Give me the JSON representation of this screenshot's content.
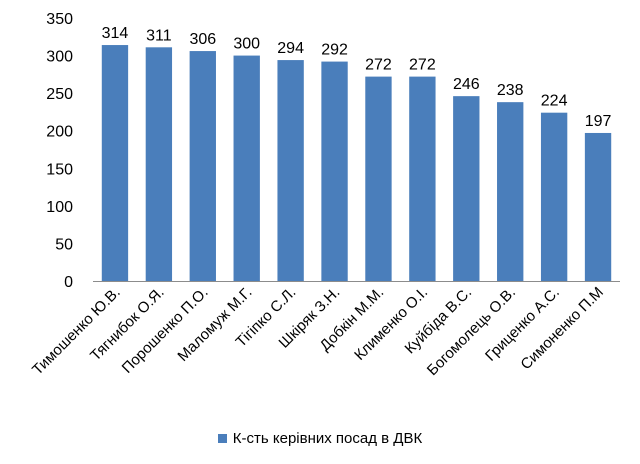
{
  "chart_data": {
    "type": "bar",
    "categories": [
      "Тимошенко Ю.В.",
      "Тягнибок О.Я.",
      "Порошенко П.О.",
      "Маломуж М.Г.",
      "Тігіпко С.Л.",
      "Шкіряк З.Н.",
      "Добкін М.М.",
      "Клименко О.І.",
      "Куйбіда В.С.",
      "Богомолець О.В.",
      "Гриценко А.С.",
      "Симоненко П.М"
    ],
    "series": [
      {
        "name": "К-сть керівних посад в ДВК",
        "values": [
          314,
          311,
          306,
          300,
          294,
          292,
          272,
          272,
          246,
          238,
          224,
          197
        ]
      }
    ],
    "ylim": [
      0,
      350
    ],
    "yticks": [
      0,
      50,
      100,
      150,
      200,
      250,
      300,
      350
    ],
    "grid": false,
    "legend": "bottom",
    "bar_color": "#4A7EBB"
  }
}
